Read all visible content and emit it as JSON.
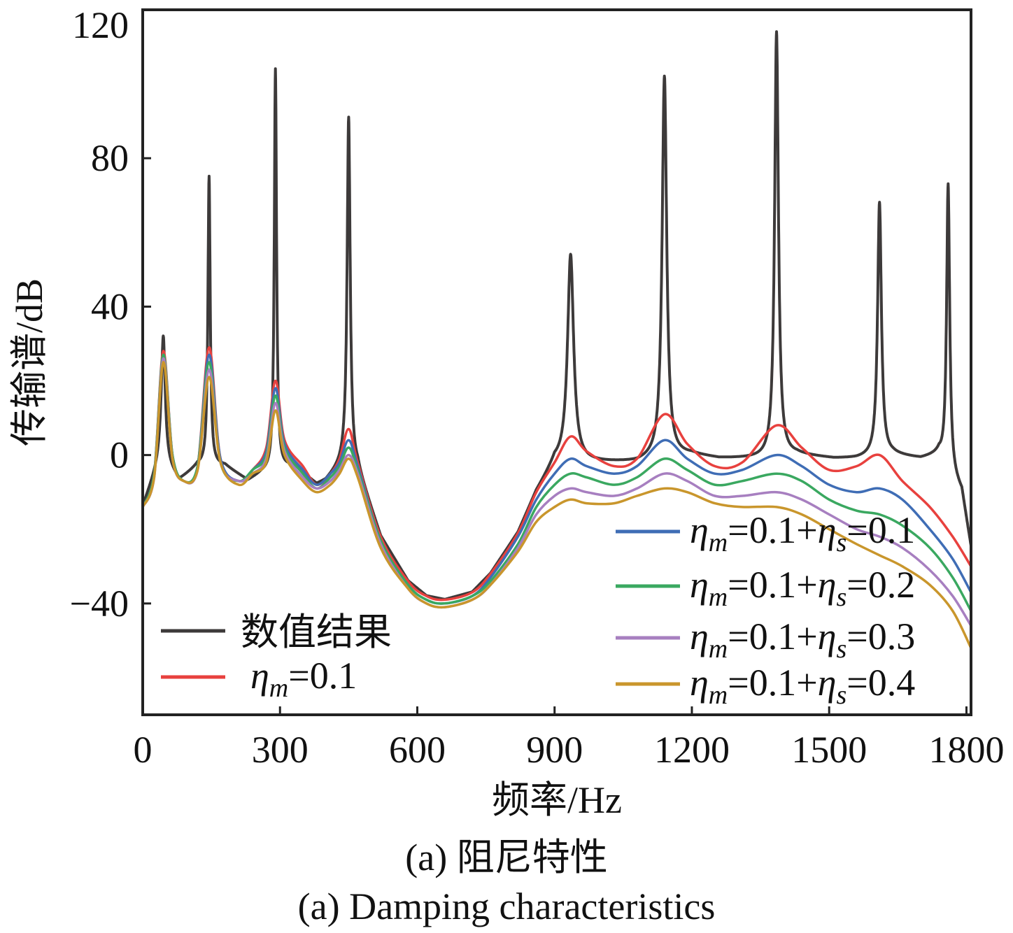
{
  "chart_data": {
    "type": "line",
    "title": "",
    "xlabel": "频率/Hz",
    "ylabel": "传输谱/dB",
    "xlim": [
      0,
      1810
    ],
    "ylim": [
      -70,
      120
    ],
    "xticks": [
      0,
      300,
      600,
      900,
      1200,
      1500,
      1800
    ],
    "yticks": [
      -40,
      0,
      40,
      80,
      120
    ],
    "grid": false,
    "legend": [
      {
        "position": "bottom-left",
        "entries": [
          "数值结果",
          "ηm=0.1"
        ]
      },
      {
        "position": "bottom-right",
        "entries": [
          "ηm=0.1+ηs=0.1",
          "ηm=0.1+ηs=0.2",
          "ηm=0.1+ηs=0.3",
          "ηm=0.1+ηs=0.4"
        ]
      }
    ],
    "series": [
      {
        "name": "数值结果",
        "color": "#3d3a3a",
        "baseline": [
          [
            0,
            -14
          ],
          [
            40,
            -1
          ],
          [
            80,
            -7
          ],
          [
            120,
            -3
          ],
          [
            180,
            -3
          ],
          [
            230,
            -7
          ],
          [
            260,
            -5
          ],
          [
            330,
            -3
          ],
          [
            380,
            -8
          ],
          [
            400,
            -7
          ],
          [
            440,
            -2
          ],
          [
            470,
            -4
          ],
          [
            520,
            -22
          ],
          [
            580,
            -34
          ],
          [
            620,
            -38
          ],
          [
            660,
            -39
          ],
          [
            720,
            -37
          ],
          [
            760,
            -32
          ],
          [
            820,
            -21
          ],
          [
            860,
            -10
          ],
          [
            900,
            -2
          ],
          [
            960,
            -2
          ],
          [
            1020,
            -2
          ],
          [
            1080,
            -2
          ],
          [
            1120,
            -1
          ],
          [
            1200,
            0
          ],
          [
            1260,
            -1
          ],
          [
            1320,
            -1
          ],
          [
            1360,
            -1
          ],
          [
            1430,
            0
          ],
          [
            1510,
            -1
          ],
          [
            1560,
            -1
          ],
          [
            1640,
            0
          ],
          [
            1700,
            -1
          ],
          [
            1740,
            0
          ],
          [
            1790,
            -10
          ],
          [
            1810,
            -25
          ]
        ],
        "peaks": [
          [
            45,
            32,
            5
          ],
          [
            145,
            75,
            3
          ],
          [
            290,
            104,
            3
          ],
          [
            450,
            91,
            4
          ],
          [
            935,
            54,
            8
          ],
          [
            1140,
            102,
            6
          ],
          [
            1385,
            114,
            5
          ],
          [
            1610,
            68,
            5
          ],
          [
            1760,
            73,
            4
          ]
        ]
      },
      {
        "name": "ηm=0.1",
        "color": "#e8413e",
        "points": [
          [
            0,
            -14
          ],
          [
            25,
            -5
          ],
          [
            45,
            28
          ],
          [
            65,
            0
          ],
          [
            90,
            -7
          ],
          [
            120,
            -3
          ],
          [
            145,
            29
          ],
          [
            170,
            -1
          ],
          [
            210,
            -7
          ],
          [
            240,
            -4
          ],
          [
            270,
            2
          ],
          [
            290,
            20
          ],
          [
            310,
            4
          ],
          [
            350,
            -3
          ],
          [
            380,
            -8
          ],
          [
            410,
            -5
          ],
          [
            430,
            -1
          ],
          [
            450,
            7
          ],
          [
            470,
            -2
          ],
          [
            520,
            -22
          ],
          [
            580,
            -34
          ],
          [
            620,
            -38
          ],
          [
            660,
            -39
          ],
          [
            720,
            -37
          ],
          [
            760,
            -32
          ],
          [
            820,
            -21
          ],
          [
            860,
            -10
          ],
          [
            900,
            -2
          ],
          [
            935,
            5
          ],
          [
            970,
            1
          ],
          [
            1030,
            -3
          ],
          [
            1080,
            -1
          ],
          [
            1140,
            11
          ],
          [
            1190,
            3
          ],
          [
            1250,
            -3
          ],
          [
            1310,
            -2
          ],
          [
            1385,
            8
          ],
          [
            1440,
            2
          ],
          [
            1500,
            -4
          ],
          [
            1560,
            -3
          ],
          [
            1610,
            0
          ],
          [
            1660,
            -7
          ],
          [
            1720,
            -14
          ],
          [
            1770,
            -22
          ],
          [
            1810,
            -30
          ]
        ]
      },
      {
        "name": "ηm=0.1+ηs=0.1",
        "color": "#3f6db5",
        "points": [
          [
            0,
            -14
          ],
          [
            25,
            -5
          ],
          [
            45,
            27
          ],
          [
            65,
            0
          ],
          [
            90,
            -7
          ],
          [
            120,
            -3
          ],
          [
            145,
            27
          ],
          [
            170,
            -1
          ],
          [
            210,
            -7
          ],
          [
            240,
            -4
          ],
          [
            270,
            1
          ],
          [
            290,
            18
          ],
          [
            310,
            3
          ],
          [
            350,
            -4
          ],
          [
            380,
            -8
          ],
          [
            410,
            -5
          ],
          [
            430,
            -2
          ],
          [
            450,
            4
          ],
          [
            470,
            -3
          ],
          [
            520,
            -23
          ],
          [
            580,
            -35
          ],
          [
            620,
            -39
          ],
          [
            660,
            -40
          ],
          [
            720,
            -38
          ],
          [
            760,
            -33
          ],
          [
            820,
            -22
          ],
          [
            860,
            -12
          ],
          [
            900,
            -5
          ],
          [
            935,
            -1
          ],
          [
            970,
            -3
          ],
          [
            1030,
            -5
          ],
          [
            1080,
            -3
          ],
          [
            1140,
            4
          ],
          [
            1190,
            -1
          ],
          [
            1250,
            -5
          ],
          [
            1310,
            -4
          ],
          [
            1385,
            0
          ],
          [
            1440,
            -3
          ],
          [
            1500,
            -8
          ],
          [
            1560,
            -10
          ],
          [
            1610,
            -9
          ],
          [
            1660,
            -12
          ],
          [
            1720,
            -20
          ],
          [
            1770,
            -28
          ],
          [
            1810,
            -37
          ]
        ]
      },
      {
        "name": "ηm=0.1+ηs=0.2",
        "color": "#3aa860",
        "points": [
          [
            0,
            -14
          ],
          [
            25,
            -5
          ],
          [
            45,
            27
          ],
          [
            65,
            0
          ],
          [
            90,
            -7
          ],
          [
            120,
            -3
          ],
          [
            145,
            25
          ],
          [
            170,
            -2
          ],
          [
            210,
            -7
          ],
          [
            240,
            -4
          ],
          [
            270,
            0
          ],
          [
            290,
            16
          ],
          [
            310,
            2
          ],
          [
            350,
            -5
          ],
          [
            380,
            -9
          ],
          [
            410,
            -6
          ],
          [
            430,
            -3
          ],
          [
            450,
            2
          ],
          [
            470,
            -4
          ],
          [
            520,
            -23
          ],
          [
            580,
            -35
          ],
          [
            620,
            -39
          ],
          [
            660,
            -40
          ],
          [
            720,
            -38
          ],
          [
            760,
            -34
          ],
          [
            820,
            -24
          ],
          [
            860,
            -14
          ],
          [
            900,
            -8
          ],
          [
            935,
            -5
          ],
          [
            970,
            -6
          ],
          [
            1030,
            -8
          ],
          [
            1080,
            -6
          ],
          [
            1140,
            -1
          ],
          [
            1190,
            -4
          ],
          [
            1250,
            -8
          ],
          [
            1310,
            -7
          ],
          [
            1385,
            -5
          ],
          [
            1440,
            -7
          ],
          [
            1500,
            -12
          ],
          [
            1560,
            -15
          ],
          [
            1610,
            -16
          ],
          [
            1660,
            -19
          ],
          [
            1720,
            -25
          ],
          [
            1770,
            -33
          ],
          [
            1810,
            -42
          ]
        ]
      },
      {
        "name": "ηm=0.1+ηs=0.3",
        "color": "#a77fc0",
        "points": [
          [
            0,
            -14
          ],
          [
            25,
            -6
          ],
          [
            45,
            26
          ],
          [
            65,
            -1
          ],
          [
            90,
            -7
          ],
          [
            120,
            -4
          ],
          [
            145,
            23
          ],
          [
            170,
            -2
          ],
          [
            210,
            -7
          ],
          [
            240,
            -5
          ],
          [
            270,
            -1
          ],
          [
            290,
            14
          ],
          [
            310,
            1
          ],
          [
            350,
            -6
          ],
          [
            380,
            -9
          ],
          [
            410,
            -7
          ],
          [
            430,
            -4
          ],
          [
            450,
            0
          ],
          [
            470,
            -5
          ],
          [
            520,
            -24
          ],
          [
            580,
            -36
          ],
          [
            620,
            -40
          ],
          [
            660,
            -41
          ],
          [
            720,
            -39
          ],
          [
            760,
            -35
          ],
          [
            820,
            -25
          ],
          [
            860,
            -16
          ],
          [
            900,
            -11
          ],
          [
            935,
            -9
          ],
          [
            970,
            -10
          ],
          [
            1030,
            -11
          ],
          [
            1080,
            -9
          ],
          [
            1140,
            -5
          ],
          [
            1190,
            -7
          ],
          [
            1250,
            -11
          ],
          [
            1310,
            -11
          ],
          [
            1385,
            -10
          ],
          [
            1440,
            -12
          ],
          [
            1500,
            -16
          ],
          [
            1560,
            -20
          ],
          [
            1610,
            -22
          ],
          [
            1660,
            -25
          ],
          [
            1720,
            -31
          ],
          [
            1770,
            -38
          ],
          [
            1810,
            -46
          ]
        ]
      },
      {
        "name": "ηm=0.1+ηs=0.4",
        "color": "#c9962c",
        "points": [
          [
            0,
            -14
          ],
          [
            25,
            -6
          ],
          [
            45,
            25
          ],
          [
            65,
            -1
          ],
          [
            90,
            -7
          ],
          [
            120,
            -4
          ],
          [
            145,
            21
          ],
          [
            170,
            -2
          ],
          [
            210,
            -8
          ],
          [
            240,
            -5
          ],
          [
            270,
            -2
          ],
          [
            290,
            12
          ],
          [
            310,
            0
          ],
          [
            350,
            -7
          ],
          [
            380,
            -10
          ],
          [
            410,
            -8
          ],
          [
            430,
            -5
          ],
          [
            450,
            -1
          ],
          [
            470,
            -6
          ],
          [
            520,
            -25
          ],
          [
            580,
            -36
          ],
          [
            620,
            -40
          ],
          [
            660,
            -41
          ],
          [
            720,
            -39
          ],
          [
            760,
            -35
          ],
          [
            820,
            -26
          ],
          [
            860,
            -18
          ],
          [
            900,
            -14
          ],
          [
            935,
            -12
          ],
          [
            970,
            -13
          ],
          [
            1030,
            -13
          ],
          [
            1080,
            -11
          ],
          [
            1140,
            -9
          ],
          [
            1190,
            -10
          ],
          [
            1250,
            -13
          ],
          [
            1310,
            -14
          ],
          [
            1385,
            -14
          ],
          [
            1440,
            -16
          ],
          [
            1500,
            -20
          ],
          [
            1560,
            -24
          ],
          [
            1610,
            -27
          ],
          [
            1660,
            -30
          ],
          [
            1720,
            -35
          ],
          [
            1770,
            -42
          ],
          [
            1810,
            -52
          ]
        ]
      }
    ]
  },
  "captions": {
    "cn": "(a) 阻尼特性",
    "en": "(a) Damping characteristics"
  },
  "legend_labels": {
    "numerical": "数值结果",
    "eta_m": "η",
    "sub_m": "m",
    "eta_s": "η",
    "sub_s": "s",
    "s0": "=0.1",
    "s1_mid": "=0.1+",
    "s1_end": "=0.1",
    "s2_end": "=0.2",
    "s3_end": "=0.3",
    "s4_end": "=0.4"
  }
}
